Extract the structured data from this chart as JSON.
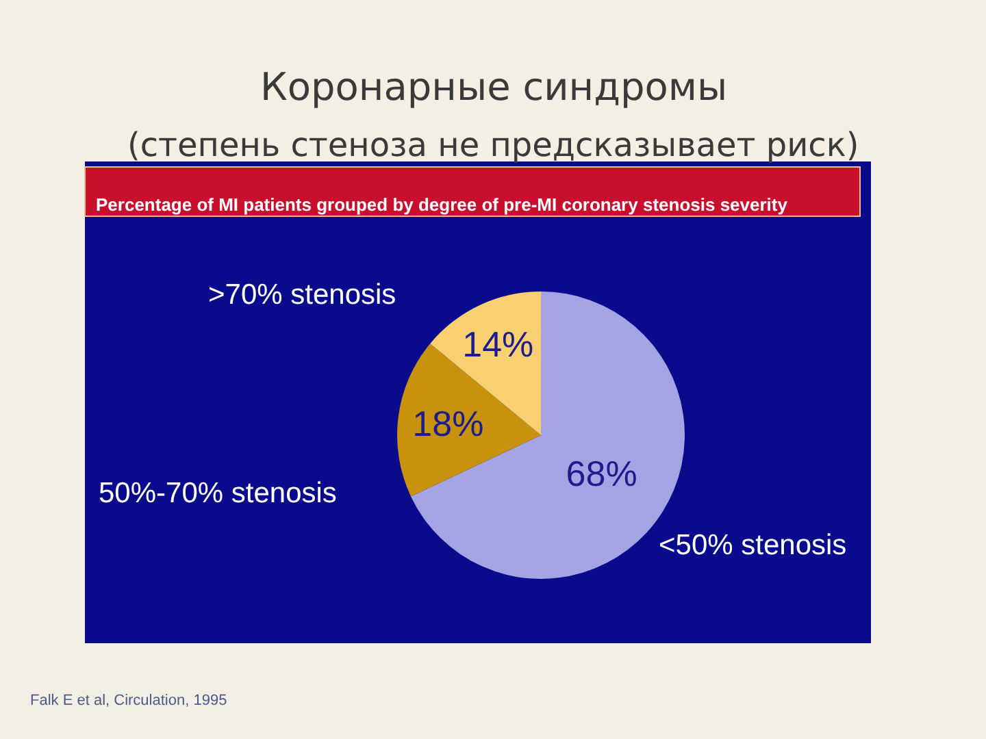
{
  "chart_data": {
    "type": "pie",
    "title": "Коронарные синдромы\n(степень стеноза не предсказывает риск)",
    "subtitle": "Percentage of MI patients grouped by degree of pre-MI coronary stenosis severity",
    "categories": [
      "<50% stenosis",
      "50%-70% stenosis",
      ">70% stenosis"
    ],
    "values": [
      68,
      18,
      14
    ],
    "value_labels": [
      "68%",
      "18%",
      "14%"
    ],
    "colors": [
      "#a4a4e4",
      "#c8920c",
      "#f8d070"
    ],
    "legend": false,
    "annotations": [
      "Falk E et al, Circulation, 1995"
    ]
  }
}
